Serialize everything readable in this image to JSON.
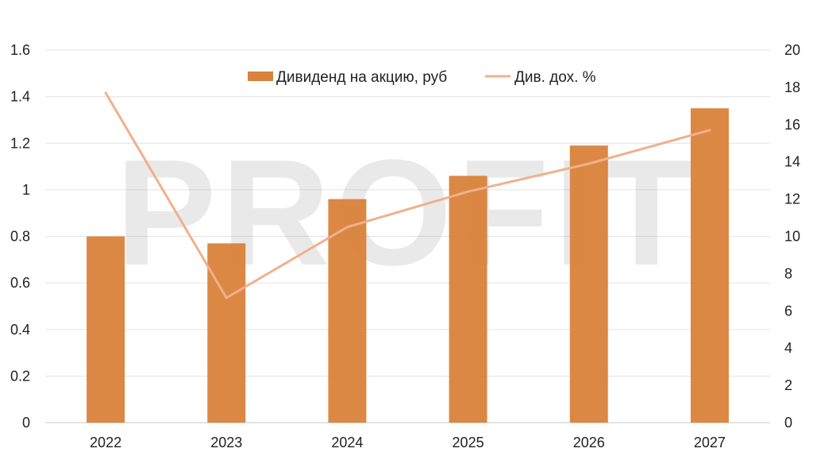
{
  "chart_data": {
    "type": "bar",
    "categories": [
      "2022",
      "2023",
      "2024",
      "2025",
      "2026",
      "2027"
    ],
    "series": [
      {
        "name": "Дивиденд на акцию, руб",
        "type": "bar",
        "axis": "left",
        "color": "#D9823B",
        "values": [
          0.8,
          0.77,
          0.96,
          1.06,
          1.19,
          1.35
        ]
      },
      {
        "name": "Див. дох. %",
        "type": "line",
        "axis": "right",
        "color": "#F0B08C",
        "values": [
          17.7,
          6.7,
          10.5,
          12.4,
          13.9,
          15.7
        ]
      }
    ],
    "y_left": {
      "lim": [
        0,
        1.6
      ],
      "ticks": [
        "0",
        "0.2",
        "0.4",
        "0.6",
        "0.8",
        "1",
        "1.2",
        "1.4",
        "1.6"
      ]
    },
    "y_right": {
      "lim": [
        0,
        20
      ],
      "ticks": [
        "0",
        "2",
        "4",
        "6",
        "8",
        "10",
        "12",
        "14",
        "16",
        "18",
        "20"
      ]
    },
    "grid": true,
    "legend_position": "top-center",
    "watermark": "PROFIT"
  }
}
